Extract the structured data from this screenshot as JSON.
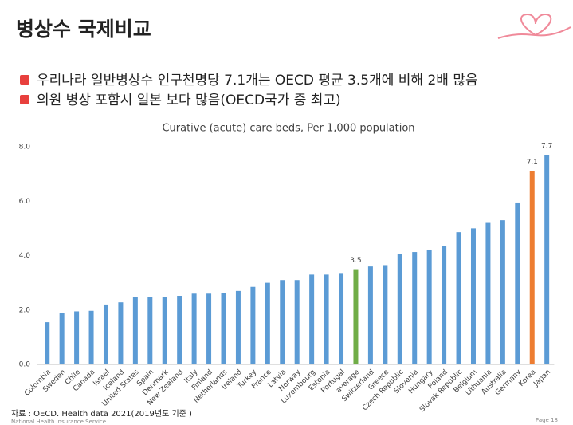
{
  "header": {
    "title": "병상수 국제비교"
  },
  "bullets": [
    "우리나라 일반병상수 인구천명당 7.1개는 OECD 평균 3.5개에 비해 2배 많음",
    "의원 병상 포함시 일본 보다 많음(OECD국가 중 최고)"
  ],
  "chart_data": {
    "type": "bar",
    "title": "Curative (acute) care beds, Per 1,000 population",
    "categories": [
      "Colombia",
      "Sweden",
      "Chile",
      "Canada",
      "Israel",
      "Iceland",
      "United States",
      "Spain",
      "Denmark",
      "New Zealand",
      "Italy",
      "Finland",
      "Netherlands",
      "Ireland",
      "Turkey",
      "France",
      "Latvia",
      "Norway",
      "Luxembourg",
      "Estonia",
      "Portugal",
      "average",
      "Switzerland",
      "Greece",
      "Czech Republic",
      "Slovenia",
      "Hungary",
      "Poland",
      "Slovak Republic",
      "Belgium",
      "Lithuania",
      "Australia",
      "Germany",
      "Korea",
      "Japan"
    ],
    "values": [
      1.55,
      1.9,
      1.95,
      1.97,
      2.2,
      2.28,
      2.47,
      2.47,
      2.48,
      2.52,
      2.6,
      2.6,
      2.62,
      2.7,
      2.85,
      3.0,
      3.1,
      3.1,
      3.3,
      3.3,
      3.33,
      3.5,
      3.6,
      3.65,
      4.05,
      4.13,
      4.22,
      4.35,
      4.86,
      5.0,
      5.2,
      5.3,
      5.95,
      7.1,
      7.7
    ],
    "value_labels": [
      null,
      null,
      null,
      null,
      null,
      null,
      null,
      null,
      null,
      null,
      null,
      null,
      null,
      null,
      null,
      null,
      null,
      null,
      null,
      null,
      null,
      "3.5",
      null,
      null,
      null,
      null,
      null,
      null,
      null,
      null,
      null,
      null,
      null,
      "7.1",
      "7.7"
    ],
    "colors": [
      "#5b9bd5",
      "#5b9bd5",
      "#5b9bd5",
      "#5b9bd5",
      "#5b9bd5",
      "#5b9bd5",
      "#5b9bd5",
      "#5b9bd5",
      "#5b9bd5",
      "#5b9bd5",
      "#5b9bd5",
      "#5b9bd5",
      "#5b9bd5",
      "#5b9bd5",
      "#5b9bd5",
      "#5b9bd5",
      "#5b9bd5",
      "#5b9bd5",
      "#5b9bd5",
      "#5b9bd5",
      "#5b9bd5",
      "#70ad47",
      "#5b9bd5",
      "#5b9bd5",
      "#5b9bd5",
      "#5b9bd5",
      "#5b9bd5",
      "#5b9bd5",
      "#5b9bd5",
      "#5b9bd5",
      "#5b9bd5",
      "#5b9bd5",
      "#5b9bd5",
      "#ed7d31",
      "#5b9bd5"
    ],
    "ylim": [
      0,
      8
    ],
    "yticks": [
      {
        "value": 0,
        "label": "0.0"
      },
      {
        "value": 2,
        "label": "2.0"
      },
      {
        "value": 4,
        "label": "4.0"
      },
      {
        "value": 6,
        "label": "6.0"
      },
      {
        "value": 8,
        "label": "8.0"
      }
    ],
    "grid": false
  },
  "source": "자료 : OECD. Health data 2021(2019년도 기준 )",
  "footer": {
    "organization": "National Health Insurance Service",
    "page": "Page 18"
  }
}
